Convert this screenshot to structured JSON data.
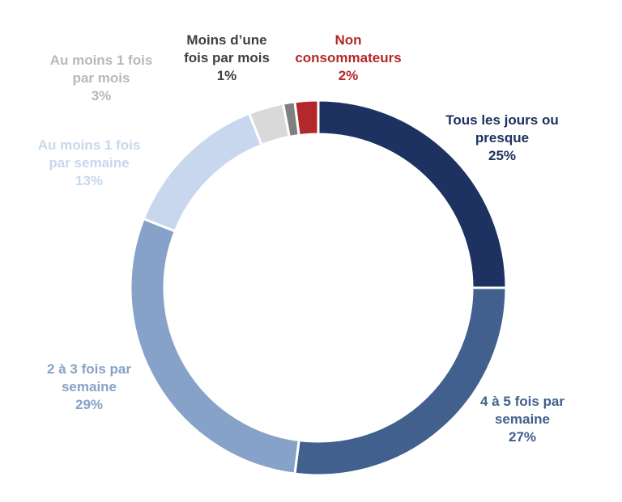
{
  "chart_data": {
    "type": "pie",
    "variant": "donut",
    "categories": [
      "Tous les jours ou presque",
      "4 à 5 fois par semaine",
      "2 à 3 fois par semaine",
      "Au moins 1 fois par semaine",
      "Au moins 1 fois par mois",
      "Moins d’une fois par mois",
      "Non consommateurs"
    ],
    "values": [
      25,
      27,
      29,
      13,
      3,
      1,
      2
    ],
    "colors": [
      "#1d3260",
      "#41608d",
      "#87a2c8",
      "#c8d7ee",
      "#d9d9d9",
      "#808080",
      "#b3282a"
    ],
    "label_colors": [
      "#1d3260",
      "#41608d",
      "#87a2c8",
      "#c8d7ee",
      "#b8b8b8",
      "#404040",
      "#b3282a"
    ],
    "labels": [
      {
        "name": "Tous les jours ou\npresque",
        "pct": "25%"
      },
      {
        "name": "4 à 5 fois par\nsemaine",
        "pct": "27%"
      },
      {
        "name": "2 à 3 fois par\nsemaine",
        "pct": "29%"
      },
      {
        "name": "Au moins 1 fois\npar semaine",
        "pct": "13%"
      },
      {
        "name": "Au moins 1 fois\npar mois",
        "pct": "3%"
      },
      {
        "name": "Moins d’une\nfois par mois",
        "pct": "1%"
      },
      {
        "name": "Non\nconsommateurs",
        "pct": "2%"
      }
    ],
    "start": "top",
    "direction": "clockwise"
  }
}
